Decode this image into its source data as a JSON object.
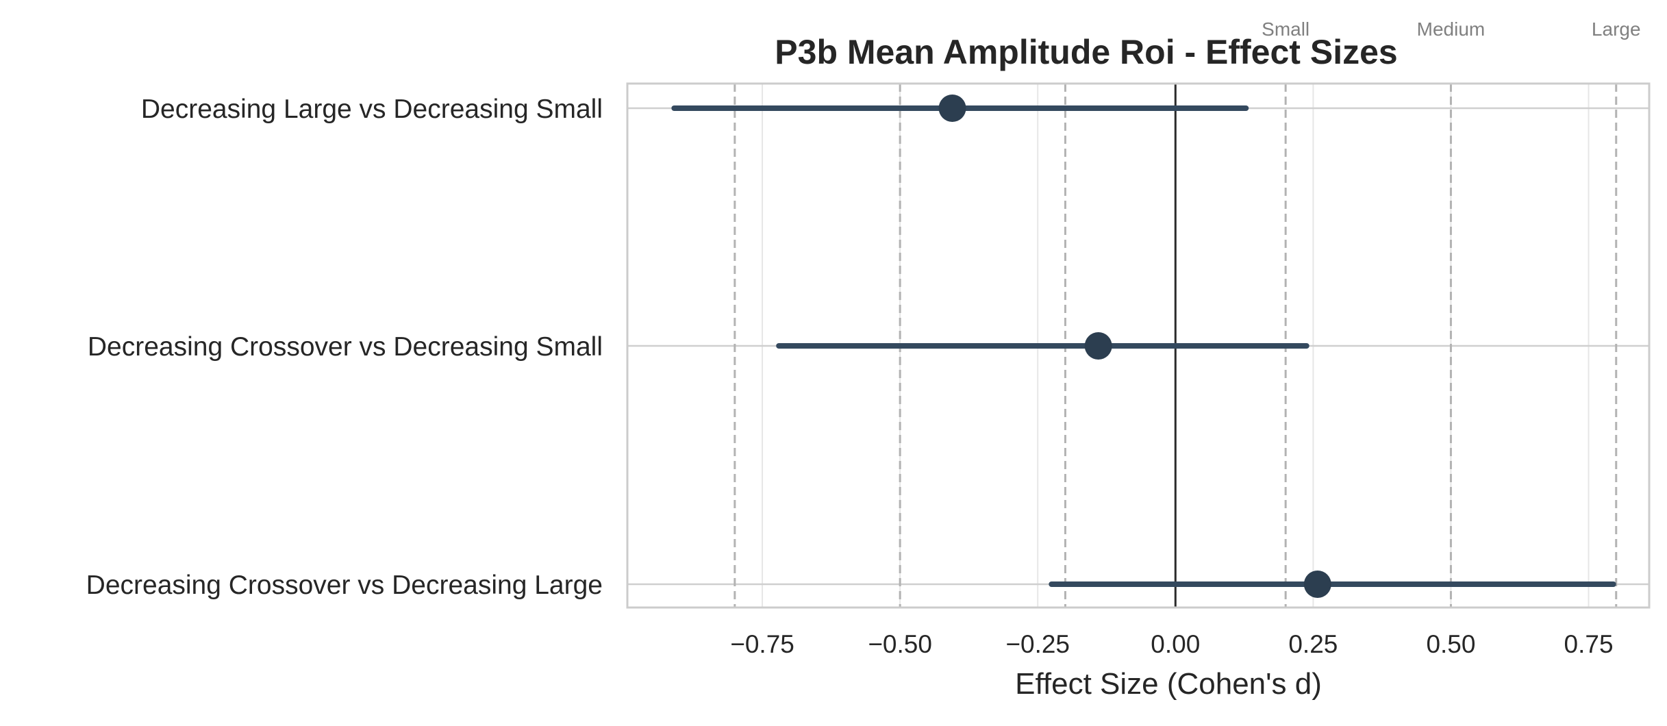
{
  "chart_data": {
    "type": "forest",
    "title": "P3b Mean Amplitude Roi - Effect Sizes",
    "xlabel": "Effect Size (Cohen's d)",
    "ylabel": "",
    "xlim": [
      -0.995,
      0.86
    ],
    "xticks": [
      -0.75,
      -0.5,
      -0.25,
      0.0,
      0.25,
      0.5,
      0.75
    ],
    "xtick_labels": [
      "−0.75",
      "−0.50",
      "−0.25",
      "0.00",
      "0.25",
      "0.50",
      "0.75"
    ],
    "grid": true,
    "zero_line": 0.0,
    "threshold_lines": [
      -0.8,
      -0.5,
      -0.2,
      0.2,
      0.5,
      0.8
    ],
    "threshold_labels": [
      {
        "x": 0.2,
        "label": "Small"
      },
      {
        "x": 0.5,
        "label": "Medium"
      },
      {
        "x": 0.8,
        "label": "Large"
      }
    ],
    "comparisons": [
      {
        "label": "Decreasing Large vs Decreasing Small",
        "d": -0.405,
        "ci_low": -0.91,
        "ci_high": 0.128
      },
      {
        "label": "Decreasing Crossover vs Decreasing Small",
        "d": -0.14,
        "ci_low": -0.72,
        "ci_high": 0.238
      },
      {
        "label": "Decreasing Crossover vs Decreasing Large",
        "d": 0.258,
        "ci_low": -0.225,
        "ci_high": 0.795
      }
    ],
    "colors": {
      "point": "#2c3e50",
      "ci": "#34495e",
      "zero_line": "#2b2b2b",
      "threshold": "#b3b3b3",
      "grid": "#e6e6e6",
      "frame": "#cccccc",
      "text": "#262626",
      "threshold_label": "#808080"
    }
  }
}
